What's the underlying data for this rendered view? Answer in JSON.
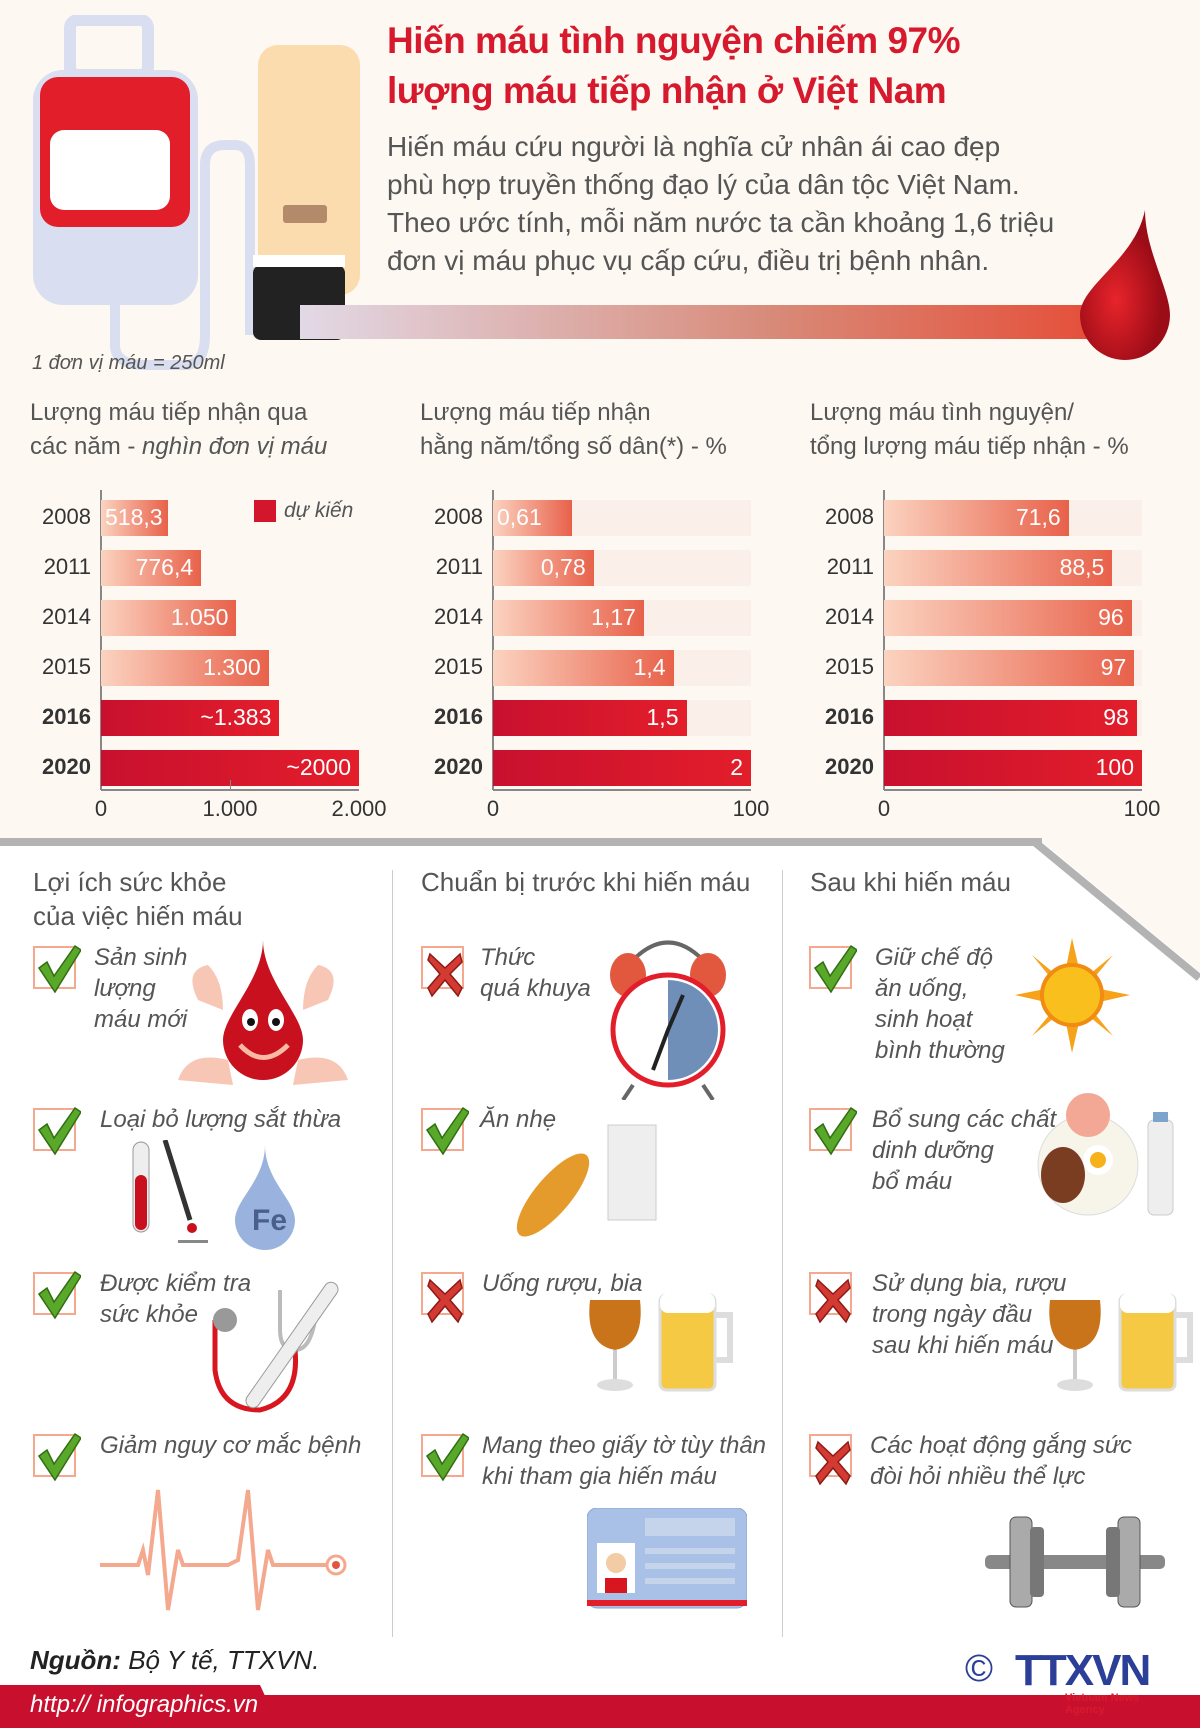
{
  "header": {
    "title_line1": "Hiến máu tình nguyện chiếm 97%",
    "title_line2": "lượng máu tiếp nhận ở Việt Nam",
    "lead": [
      "Hiến máu cứu người là nghĩa cử nhân ái cao đẹp",
      "phù hợp truyền thống đạo lý của dân tộc Việt Nam.",
      "Theo ước tính, mỗi năm nước ta cần khoảng 1,6 triệu",
      "đơn vị máu phục vụ cấp cứu, điều trị bệnh nhân."
    ],
    "unit_note": "1 đơn vị máu = 250ml"
  },
  "colors": {
    "accent": "#d7192d",
    "projected": "#d4162c",
    "bar_light": "#fbd3c0",
    "bar_mid": "#e8614a",
    "track": "#fbefe9"
  },
  "chart_data": [
    {
      "type": "bar",
      "orientation": "horizontal",
      "title": "Lượng máu tiếp nhận qua",
      "title2": "các năm - ",
      "unit": "nghìn đơn vị máu",
      "legend": "dự kiến",
      "legend_placement": "top-right",
      "categories": [
        "2008",
        "2011",
        "2014",
        "2015",
        "2016",
        "2020"
      ],
      "values": [
        518.3,
        776.4,
        1050,
        1300,
        1383,
        2000
      ],
      "labels": [
        "518,3",
        "776,4",
        "1.050",
        "1.300",
        "~1.383",
        "~2000"
      ],
      "projected": [
        false,
        false,
        false,
        false,
        true,
        true
      ],
      "xlim": [
        0,
        2000
      ],
      "ticks": [
        "0",
        "1.000",
        "2.000"
      ],
      "tick_values": [
        0,
        1000,
        2000
      ],
      "track": false
    },
    {
      "type": "bar",
      "orientation": "horizontal",
      "title": "Lượng máu tiếp nhận",
      "title2": "hằng năm/tổng số dân(*) - %",
      "unit": "",
      "categories": [
        "2008",
        "2011",
        "2014",
        "2015",
        "2016",
        "2020"
      ],
      "values": [
        0.61,
        0.78,
        1.17,
        1.4,
        1.5,
        2
      ],
      "labels": [
        "0,61",
        "0,78",
        "1,17",
        "1,4",
        "1,5",
        "2"
      ],
      "projected": [
        false,
        false,
        false,
        false,
        true,
        true
      ],
      "xlim": [
        0,
        2
      ],
      "ticks": [
        "0",
        "100"
      ],
      "tick_values": [
        0,
        2
      ],
      "track": true
    },
    {
      "type": "bar",
      "orientation": "horizontal",
      "title": "Lượng máu tình nguyện/",
      "title2": "tổng lượng máu tiếp nhận - %",
      "unit": "",
      "categories": [
        "2008",
        "2011",
        "2014",
        "2015",
        "2016",
        "2020"
      ],
      "values": [
        71.6,
        88.5,
        96,
        97,
        98,
        100
      ],
      "labels": [
        "71,6",
        "88,5",
        "96",
        "97",
        "98",
        "100"
      ],
      "projected": [
        false,
        false,
        false,
        false,
        true,
        true
      ],
      "xlim": [
        0,
        100
      ],
      "ticks": [
        "0",
        "100"
      ],
      "tick_values": [
        0,
        100
      ],
      "track": true
    }
  ],
  "sections": [
    {
      "title": [
        "Lợi ích sức khỏe",
        "của việc hiến máu"
      ],
      "items": [
        {
          "ok": true,
          "icon": "blood-drop-character-icon",
          "text": [
            "Sản sinh",
            "lượng",
            "máu mới"
          ]
        },
        {
          "ok": true,
          "icon": "test-tube-iron-icon",
          "text": [
            "Loại bỏ lượng sắt thừa"
          ],
          "icon_text": "Fe"
        },
        {
          "ok": true,
          "icon": "stethoscope-thermometer-icon",
          "text": [
            "Được kiểm tra",
            "sức khỏe"
          ]
        },
        {
          "ok": true,
          "icon": "heartbeat-icon",
          "text": [
            "Giảm nguy cơ mắc bệnh"
          ]
        }
      ]
    },
    {
      "title": [
        "Chuẩn bị trước khi hiến máu"
      ],
      "items": [
        {
          "ok": false,
          "icon": "alarm-clock-icon",
          "text": [
            "Thức",
            "quá khuya"
          ]
        },
        {
          "ok": true,
          "icon": "bread-milk-icon",
          "text": [
            "Ăn nhẹ"
          ]
        },
        {
          "ok": false,
          "icon": "beer-wine-icon",
          "text": [
            "Uống rượu, bia"
          ]
        },
        {
          "ok": true,
          "icon": "id-card-icon",
          "text": [
            "Mang theo giấy tờ tùy thân",
            "khi tham gia hiến máu"
          ]
        }
      ]
    },
    {
      "title": [
        "Sau khi hiến máu"
      ],
      "items": [
        {
          "ok": true,
          "icon": "sun-icon",
          "text": [
            "Giữ chế độ",
            "ăn uống,",
            "sinh hoạt",
            "bình thường"
          ]
        },
        {
          "ok": true,
          "icon": "food-plate-icon",
          "text": [
            "Bổ sung các chất",
            "dinh dưỡng",
            "bổ máu"
          ]
        },
        {
          "ok": false,
          "icon": "beer-wine-icon",
          "text": [
            "Sử dụng bia, rượu",
            "trong ngày đầu",
            "sau khi hiến máu"
          ]
        },
        {
          "ok": false,
          "icon": "dumbbell-icon",
          "text": [
            "Các hoạt động gắng sức",
            "đòi hỏi nhiều thể lực"
          ]
        }
      ]
    }
  ],
  "footer": {
    "source_label": "Nguồn:",
    "source": " Bộ Y tế, TTXVN.",
    "url": "http:// infographics.vn",
    "logo": "TTXVN",
    "logo_sub": "Vietnam News Agency",
    "copyright": "©"
  }
}
